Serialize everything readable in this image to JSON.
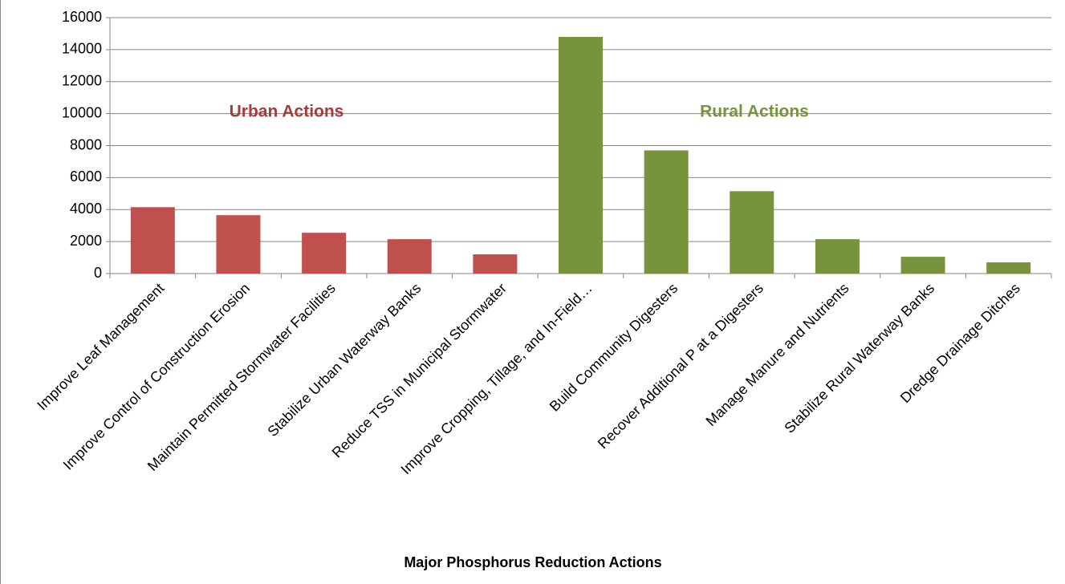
{
  "chart_data": {
    "type": "bar",
    "x_label": "Major Phosphorus Reduction Actions",
    "categories": [
      "Improve Leaf Management",
      "Improve Control of Construction Erosion",
      "Maintain Permitted Stormwater Facilities",
      "Stabilize Urban Waterway Banks",
      "Reduce TSS in Municipal Stormwater",
      "Improve Cropping, Tillage, and In-Field…",
      "Build Community Digesters",
      "Recover Additional P at a Digesters",
      "Manage Manure and Nutrients",
      "Stabilize Rural Waterway Banks",
      "Dredge Drainage Ditches"
    ],
    "values": [
      4150,
      3650,
      2550,
      2150,
      1200,
      14800,
      7700,
      5150,
      2150,
      1050,
      700
    ],
    "colors": [
      "#c0504d",
      "#c0504d",
      "#c0504d",
      "#c0504d",
      "#c0504d",
      "#77933c",
      "#77933c",
      "#77933c",
      "#77933c",
      "#77933c",
      "#77933c"
    ],
    "annotations": [
      {
        "text": "Urban Actions",
        "color": "#a33c3a"
      },
      {
        "text": "Rural Actions",
        "color": "#77933c"
      }
    ],
    "ylim": [
      0,
      16000
    ],
    "yticks": [
      0,
      2000,
      4000,
      6000,
      8000,
      10000,
      12000,
      14000,
      16000
    ],
    "grid": true
  }
}
